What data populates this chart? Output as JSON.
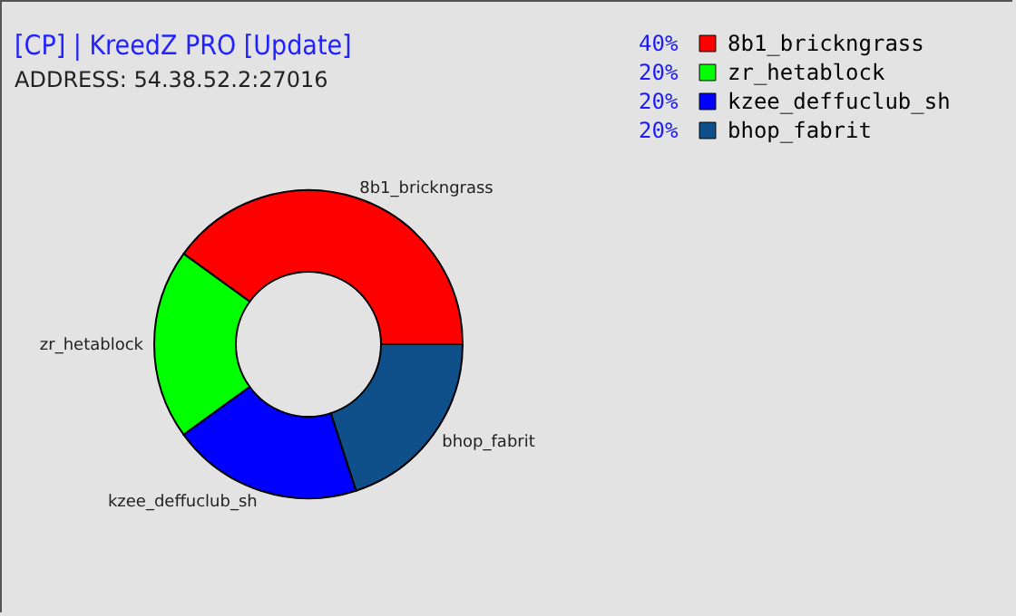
{
  "chart_data": {
    "type": "donut",
    "title": "[CP] | KreedZ PRO [Update]",
    "subtitle": "ADDRESS: 54.38.52.2:27016",
    "categories": [
      "8b1_brickngrass",
      "zr_hetablock",
      "kzee_deffuclub_sh",
      "bhop_fabrit"
    ],
    "values": [
      40,
      20,
      20,
      20
    ],
    "colors": [
      "#ff0000",
      "#00ff00",
      "#0000ff",
      "#0f4f8a"
    ],
    "value_labels": [
      "40%",
      "20%",
      "20%",
      "20%"
    ],
    "legend": "top right"
  }
}
